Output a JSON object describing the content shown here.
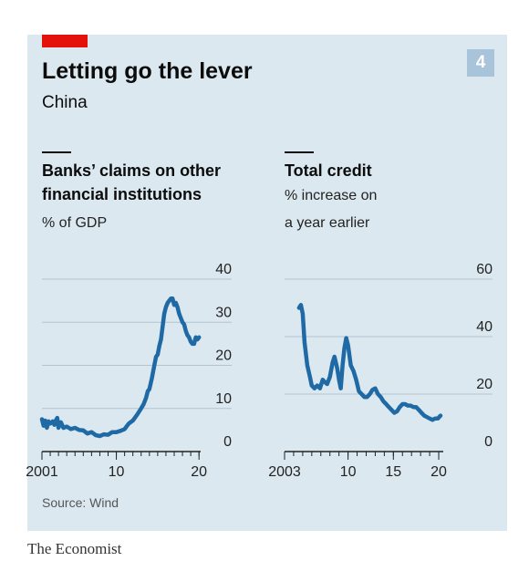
{
  "header": {
    "title": "Letting go the lever",
    "subtitle": "China",
    "badge": "4"
  },
  "left_panel": {
    "title_line1": "Banks’ claims on other",
    "title_line2": "financial institutions",
    "unit": "% of GDP"
  },
  "right_panel": {
    "title_line1": "Total credit",
    "unit_line1": "% increase on",
    "unit_line2": "a year earlier"
  },
  "footer": {
    "source": "Source: Wind",
    "brand": "The Economist"
  },
  "colors": {
    "line": "#1f6aa5",
    "background": "#dbe8f0",
    "accent": "#e3120b",
    "badge": "#a7c4db"
  },
  "chart_data": [
    {
      "type": "line",
      "title": "Banks’ claims on other financial institutions",
      "ylabel": "% of GDP",
      "xlim": [
        2001,
        2020.2
      ],
      "ylim": [
        0,
        40
      ],
      "yticks": [
        0,
        10,
        20,
        30,
        40
      ],
      "ytick_labels": [
        "0",
        "10",
        "20",
        "30",
        "40"
      ],
      "xtick_labels": [
        {
          "x": 2001,
          "label": "2001"
        },
        {
          "x": 2010,
          "label": "10"
        },
        {
          "x": 2020,
          "label": "20"
        }
      ],
      "minor_xticks": [
        2001,
        2002,
        2003,
        2004,
        2005,
        2006,
        2007,
        2008,
        2009,
        2010,
        2011,
        2012,
        2013,
        2014,
        2015,
        2016,
        2017,
        2018,
        2019,
        2020
      ],
      "grid": true,
      "series": [
        {
          "x": [
            2001.0,
            2001.2,
            2001.4,
            2001.6,
            2001.8,
            2002.0,
            2002.3,
            2002.5,
            2002.7,
            2002.85,
            2003.0,
            2003.3,
            2003.6,
            2004.0,
            2004.5,
            2005.0,
            2005.5,
            2006.0,
            2006.5,
            2007.0,
            2007.5,
            2008.0,
            2008.5,
            2009.0,
            2009.5,
            2010.0,
            2010.5,
            2011.0,
            2011.5,
            2012.0,
            2012.5,
            2013.0,
            2013.3,
            2013.6,
            2013.8,
            2014.0,
            2014.3,
            2014.6,
            2014.8,
            2015.0,
            2015.2,
            2015.4,
            2015.6,
            2015.8,
            2016.0,
            2016.2,
            2016.4,
            2016.6,
            2016.8,
            2017.0,
            2017.2,
            2017.4,
            2017.6,
            2017.8,
            2018.0,
            2018.2,
            2018.4,
            2018.6,
            2018.8,
            2019.0,
            2019.2,
            2019.4,
            2019.6,
            2019.8,
            2020.0
          ],
          "y": [
            7.5,
            6.0,
            7.2,
            5.5,
            7.0,
            6.5,
            7.0,
            6.2,
            7.3,
            7.8,
            5.5,
            6.8,
            5.5,
            5.8,
            5.2,
            5.5,
            5.0,
            4.9,
            4.2,
            4.5,
            3.8,
            3.6,
            4.0,
            3.9,
            4.5,
            4.5,
            4.8,
            5.2,
            6.5,
            7.2,
            8.5,
            10.0,
            11.0,
            12.5,
            14.0,
            14.5,
            17.0,
            20.0,
            22.0,
            22.5,
            24.5,
            26.0,
            29.0,
            32.0,
            33.5,
            34.5,
            35.0,
            35.5,
            35.5,
            34.0,
            34.5,
            33.5,
            32.0,
            31.0,
            30.0,
            29.5,
            28.0,
            27.0,
            26.5,
            25.5,
            25.0,
            25.0,
            26.5,
            26.0,
            26.5
          ]
        }
      ]
    },
    {
      "type": "line",
      "title": "Total credit",
      "ylabel": "% increase on a year earlier",
      "xlim": [
        2003,
        2020.5
      ],
      "ylim": [
        0,
        60
      ],
      "yticks": [
        0,
        20,
        40,
        60
      ],
      "ytick_labels": [
        "0",
        "20",
        "40",
        "60"
      ],
      "xtick_labels": [
        {
          "x": 2003,
          "label": "2003"
        },
        {
          "x": 2010,
          "label": "10"
        },
        {
          "x": 2015,
          "label": "15"
        },
        {
          "x": 2020,
          "label": "20"
        }
      ],
      "minor_xticks": [
        2003,
        2004,
        2005,
        2006,
        2007,
        2008,
        2009,
        2010,
        2011,
        2012,
        2013,
        2014,
        2015,
        2016,
        2017,
        2018,
        2019,
        2020
      ],
      "grid": true,
      "series": [
        {
          "x": [
            2004.6,
            2004.8,
            2005.0,
            2005.2,
            2005.5,
            2005.8,
            2006.0,
            2006.3,
            2006.6,
            2006.9,
            2007.2,
            2007.5,
            2007.7,
            2008.0,
            2008.3,
            2008.5,
            2008.8,
            2009.0,
            2009.2,
            2009.4,
            2009.6,
            2009.8,
            2010.0,
            2010.3,
            2010.6,
            2010.9,
            2011.2,
            2011.5,
            2011.8,
            2012.1,
            2012.4,
            2012.7,
            2013.0,
            2013.3,
            2013.6,
            2013.9,
            2014.2,
            2014.5,
            2014.8,
            2015.1,
            2015.4,
            2015.7,
            2016.0,
            2016.3,
            2016.6,
            2016.9,
            2017.2,
            2017.5,
            2017.8,
            2018.1,
            2018.4,
            2018.7,
            2019.0,
            2019.3,
            2019.6,
            2019.9,
            2020.2
          ],
          "y": [
            50.0,
            51.0,
            48.0,
            38.0,
            30.0,
            26.0,
            23.0,
            22.0,
            23.0,
            22.0,
            25.0,
            24.0,
            23.5,
            26.0,
            31.0,
            33.0,
            29.0,
            25.0,
            22.0,
            30.0,
            36.0,
            39.5,
            37.0,
            30.0,
            28.0,
            25.0,
            21.0,
            20.0,
            19.0,
            19.0,
            20.0,
            21.5,
            22.0,
            20.0,
            19.0,
            17.5,
            16.5,
            15.5,
            14.5,
            13.5,
            14.0,
            15.5,
            16.5,
            16.5,
            16.0,
            16.0,
            15.5,
            15.5,
            14.5,
            13.5,
            12.5,
            12.0,
            11.5,
            11.0,
            11.5,
            11.5,
            12.5
          ]
        }
      ]
    }
  ]
}
